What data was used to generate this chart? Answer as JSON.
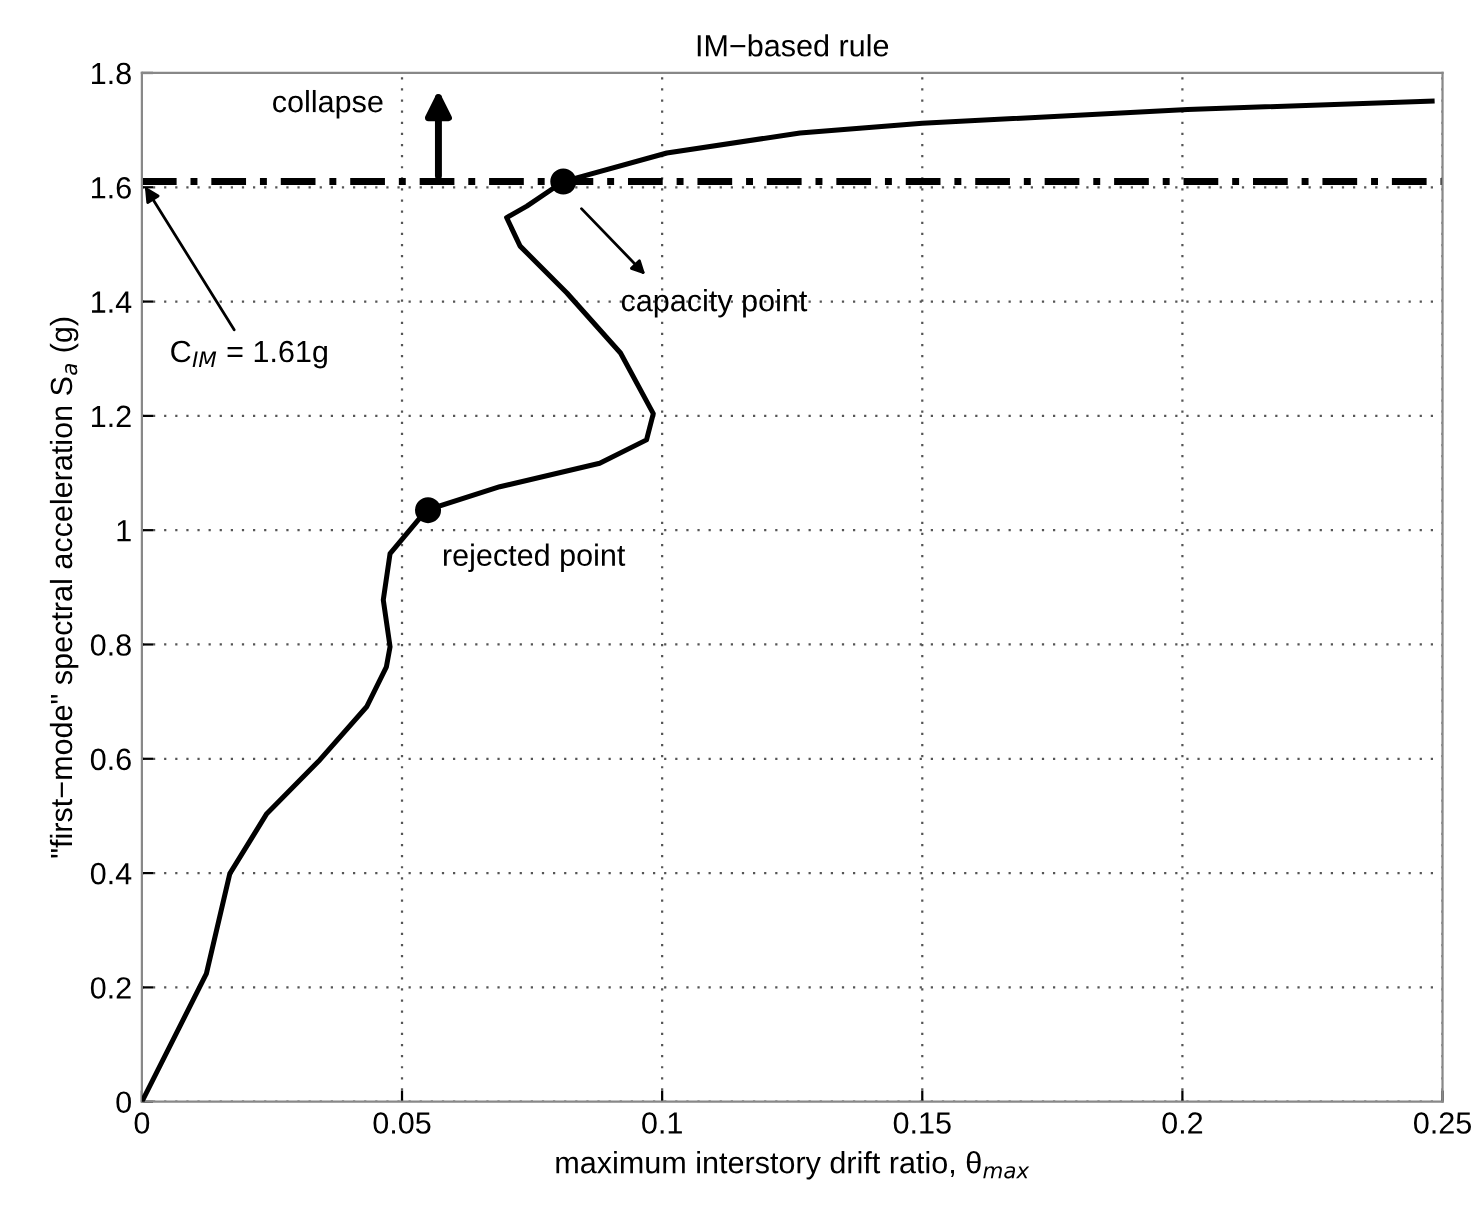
{
  "chart_data": {
    "type": "line",
    "title": "IM−based rule",
    "xlabel": "maximum interstory drift ratio, θ$_{max}$",
    "ylabel": "\"first−mode\" spectral acceleration S$_{a}$ (g)",
    "series": [
      {
        "color": "#000000",
        "x": [
          0,
          0.0124,
          0.0169,
          0.024,
          0.0342,
          0.0432,
          0.047,
          0.0477,
          0.0464,
          0.0477,
          0.0547,
          0.0688,
          0.088,
          0.097,
          0.0983,
          0.092,
          0.0817,
          0.0727,
          0.0701,
          0.074,
          0.081,
          0.1009,
          0.1265,
          0.15,
          0.201,
          0.248
        ],
        "values": [
          0,
          0.224,
          0.399,
          0.504,
          0.598,
          0.691,
          0.761,
          0.796,
          0.878,
          0.959,
          1.035,
          1.076,
          1.117,
          1.158,
          1.204,
          1.31,
          1.415,
          1.497,
          1.547,
          1.567,
          1.61,
          1.66,
          1.695,
          1.712,
          1.736,
          1.751
        ]
      },
      {
        "type": "scatter",
        "color": "#000000",
        "marker": "circle",
        "x": [
          0.055,
          0.081
        ],
        "values": [
          1.035,
          1.61
        ]
      }
    ],
    "ref_lines": [
      {
        "axis": "y",
        "value": 1.61,
        "color": "#000000",
        "line_style": "dashed"
      }
    ],
    "annotations": [
      {
        "text": "collapse",
        "x": 0.057,
        "y": 1.61
      },
      {
        "text": "C$_{IM}$ = 1.61g",
        "x": 0,
        "y": 1.61
      },
      "capacity point",
      {
        "text": "rejected point",
        "x": 0.055,
        "y": 1.035
      }
    ],
    "xlim": [
      0,
      0.25
    ],
    "ylim": [
      0,
      1.8
    ],
    "xticks": [
      0,
      0.05,
      0.1,
      0.15,
      0.2,
      0.25
    ],
    "yticks": [
      0,
      0.2,
      0.4,
      0.6,
      0.8,
      1,
      1.2,
      1.4,
      1.6,
      1.8
    ],
    "grid": true
  }
}
